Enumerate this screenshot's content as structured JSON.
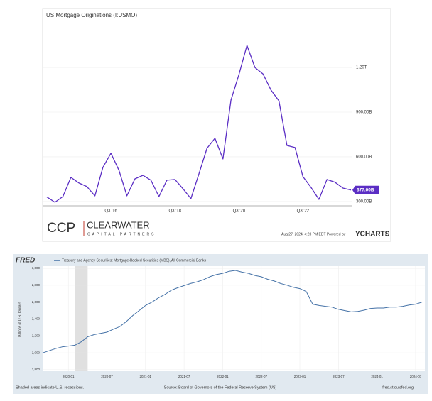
{
  "chart_data": [
    {
      "type": "line",
      "title": "US Mortgage Originations (I:USMO)",
      "categories": [
        null,
        null,
        null,
        null,
        null,
        null,
        null,
        null,
        "Q3 '16",
        null,
        null,
        null,
        null,
        null,
        null,
        null,
        "Q3 '18",
        null,
        null,
        null,
        null,
        null,
        null,
        null,
        "Q3 '20",
        null,
        null,
        null,
        null,
        null,
        null,
        null,
        "Q3 '22",
        null,
        null,
        null,
        null,
        null,
        null
      ],
      "values": [
        330,
        295,
        333,
        462,
        424,
        400,
        338,
        529,
        624,
        510,
        338,
        452,
        476,
        443,
        333,
        443,
        448,
        386,
        319,
        486,
        657,
        724,
        586,
        981,
        1152,
        1348,
        1200,
        1157,
        1048,
        976,
        676,
        662,
        467,
        395,
        314,
        448,
        429,
        390,
        377
      ],
      "value_labels": [
        null,
        null,
        null,
        null,
        null,
        null,
        null,
        null,
        null,
        null,
        null,
        null,
        null,
        null,
        null,
        null,
        null,
        null,
        null,
        null,
        null,
        null,
        null,
        null,
        null,
        null,
        null,
        null,
        null,
        null,
        null,
        null,
        null,
        null,
        null,
        null,
        null,
        null,
        "377.00B"
      ],
      "color": "#5b2ec4",
      "ylim": [
        271,
        1510
      ],
      "yticks": [
        {
          "value": 300,
          "label": "300.00B"
        },
        {
          "value": 600,
          "label": "600.00B"
        },
        {
          "value": 900,
          "label": "900.00B"
        },
        {
          "value": 1200,
          "label": "1.20T"
        }
      ],
      "grid": true,
      "y_axis_side": "right"
    },
    {
      "type": "line",
      "title": "Treasury and Agency Securities: Mortgage-Backed Securities (MBS), All Commercial Banks",
      "logo": "FRED",
      "y_label": "Billions of U.S. Dollars",
      "x": [
        "2019-09",
        "2019-10",
        "2019-11",
        "2019-12",
        "2020-01",
        "2020-02",
        "2020-03",
        "2020-04",
        "2020-05",
        "2020-06",
        "2020-07",
        "2020-08",
        "2020-09",
        "2020-10",
        "2020-11",
        "2020-12",
        "2021-01",
        "2021-02",
        "2021-03",
        "2021-04",
        "2021-05",
        "2021-06",
        "2021-07",
        "2021-08",
        "2021-09",
        "2021-10",
        "2021-11",
        "2021-12",
        "2022-01",
        "2022-02",
        "2022-03",
        "2022-04",
        "2022-05",
        "2022-06",
        "2022-07",
        "2022-08",
        "2022-09",
        "2022-10",
        "2022-11",
        "2022-12",
        "2023-01",
        "2023-02",
        "2023-03",
        "2023-04",
        "2023-05",
        "2023-06",
        "2023-07",
        "2023-08",
        "2023-09",
        "2023-10",
        "2023-11",
        "2023-12",
        "2024-01",
        "2024-02",
        "2024-03",
        "2024-04",
        "2024-05",
        "2024-06",
        "2024-07",
        "2024-08"
      ],
      "values": [
        2000,
        2025,
        2050,
        2070,
        2080,
        2090,
        2130,
        2190,
        2215,
        2230,
        2245,
        2280,
        2310,
        2370,
        2440,
        2500,
        2560,
        2600,
        2650,
        2690,
        2740,
        2770,
        2795,
        2820,
        2840,
        2865,
        2900,
        2925,
        2940,
        2965,
        2975,
        2955,
        2940,
        2915,
        2900,
        2870,
        2850,
        2820,
        2800,
        2775,
        2760,
        2725,
        2575,
        2560,
        2550,
        2540,
        2515,
        2500,
        2485,
        2490,
        2505,
        2525,
        2530,
        2530,
        2540,
        2540,
        2550,
        2565,
        2575,
        2600
      ],
      "color": "#4572a7",
      "xlim": [
        "2019-09",
        "2024-08"
      ],
      "xticks": [
        "2020-01",
        "2020-07",
        "2021-01",
        "2021-07",
        "2022-01",
        "2022-07",
        "2023-01",
        "2023-07",
        "2024-01",
        "2024-07"
      ],
      "ylim": [
        1800,
        3000
      ],
      "yticks": [
        {
          "value": 1800,
          "label": "1,800"
        },
        {
          "value": 2000,
          "label": "2,000"
        },
        {
          "value": 2200,
          "label": "2,200"
        },
        {
          "value": 2400,
          "label": "2,400"
        },
        {
          "value": 2600,
          "label": "2,600"
        },
        {
          "value": 2800,
          "label": "2,800"
        },
        {
          "value": 3000,
          "label": "3,000"
        }
      ],
      "grid": true,
      "recessions": [
        [
          "2020-02",
          "2020-04"
        ]
      ],
      "recession_note": "Shaded areas indicate U.S. recessions.",
      "source": "Source: Board of Governors of the Federal Reserve System (US)",
      "url": "fred.stlouisfed.org"
    }
  ],
  "branding": {
    "logo_mark": "CCP",
    "logo_name": "CLEARWATER",
    "logo_tagline": "CAPITAL PARTNERS",
    "timestamp": "Aug 27, 2024, 4:23 PM EDT Powered by",
    "provider": "YCHARTS"
  }
}
